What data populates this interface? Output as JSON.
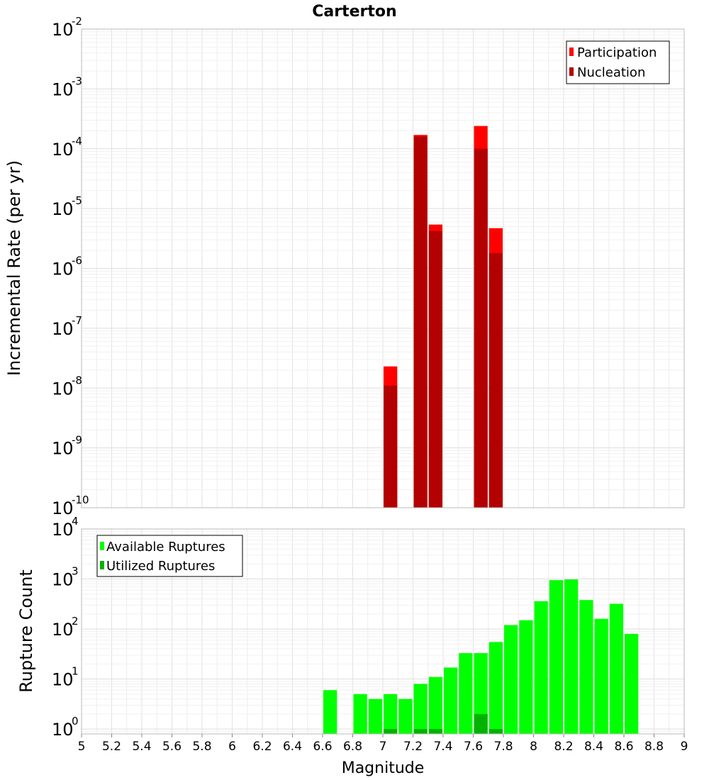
{
  "chart_data": [
    {
      "type": "bar",
      "title": "Carterton",
      "ylabel": "Incremental Rate (per yr)",
      "xlabel": "",
      "yscale": "log",
      "ylim": [
        1e-10,
        0.01
      ],
      "xlim": [
        5,
        9
      ],
      "grid": true,
      "legend": "top-right",
      "yticks": [
        {
          "base": "10",
          "exp": "-10"
        },
        {
          "base": "10",
          "exp": "-9"
        },
        {
          "base": "10",
          "exp": "-8"
        },
        {
          "base": "10",
          "exp": "-7"
        },
        {
          "base": "10",
          "exp": "-6"
        },
        {
          "base": "10",
          "exp": "-5"
        },
        {
          "base": "10",
          "exp": "-4"
        },
        {
          "base": "10",
          "exp": "-3"
        },
        {
          "base": "10",
          "exp": "-2"
        }
      ],
      "series": [
        {
          "name": "Participation",
          "color": "#ff0000",
          "x": [
            7.05,
            7.25,
            7.35,
            7.65,
            7.75
          ],
          "values": [
            2.3e-08,
            0.00017,
            5.4e-06,
            0.00024,
            4.7e-06
          ]
        },
        {
          "name": "Nucleation",
          "color": "#b30000",
          "x": [
            7.05,
            7.25,
            7.35,
            7.65,
            7.75
          ],
          "values": [
            1.1e-08,
            0.00016,
            4.2e-06,
            0.0001,
            1.8e-06
          ]
        }
      ]
    },
    {
      "type": "bar",
      "title": "",
      "ylabel": "Rupture Count",
      "xlabel": "Magnitude",
      "yscale": "log",
      "ylim": [
        0.8,
        10000
      ],
      "xlim": [
        5,
        9
      ],
      "grid": true,
      "legend": "top-left",
      "yticks": [
        {
          "base": "10",
          "exp": "0"
        },
        {
          "base": "10",
          "exp": "1"
        },
        {
          "base": "10",
          "exp": "2"
        },
        {
          "base": "10",
          "exp": "3"
        },
        {
          "base": "10",
          "exp": "4"
        }
      ],
      "xticks": [
        "5",
        "5.2",
        "5.4",
        "5.6",
        "5.8",
        "6",
        "6.2",
        "6.4",
        "6.6",
        "6.8",
        "7",
        "7.2",
        "7.4",
        "7.6",
        "7.8",
        "8",
        "8.2",
        "8.4",
        "8.6",
        "8.8",
        "9"
      ],
      "series": [
        {
          "name": "Available Ruptures",
          "color": "#00ff00",
          "x": [
            6.65,
            6.85,
            6.95,
            7.05,
            7.15,
            7.25,
            7.35,
            7.45,
            7.55,
            7.65,
            7.75,
            7.85,
            7.95,
            8.05,
            8.15,
            8.25,
            8.35,
            8.45,
            8.55,
            8.65
          ],
          "values": [
            6,
            5,
            4,
            5,
            4,
            8,
            11,
            17,
            33,
            33,
            55,
            120,
            150,
            360,
            950,
            980,
            380,
            160,
            320,
            80
          ]
        },
        {
          "name": "Utilized Ruptures",
          "color": "#00b300",
          "x": [
            7.05,
            7.25,
            7.35,
            7.65,
            7.75
          ],
          "values": [
            1,
            1,
            1,
            2,
            1
          ]
        }
      ]
    }
  ]
}
